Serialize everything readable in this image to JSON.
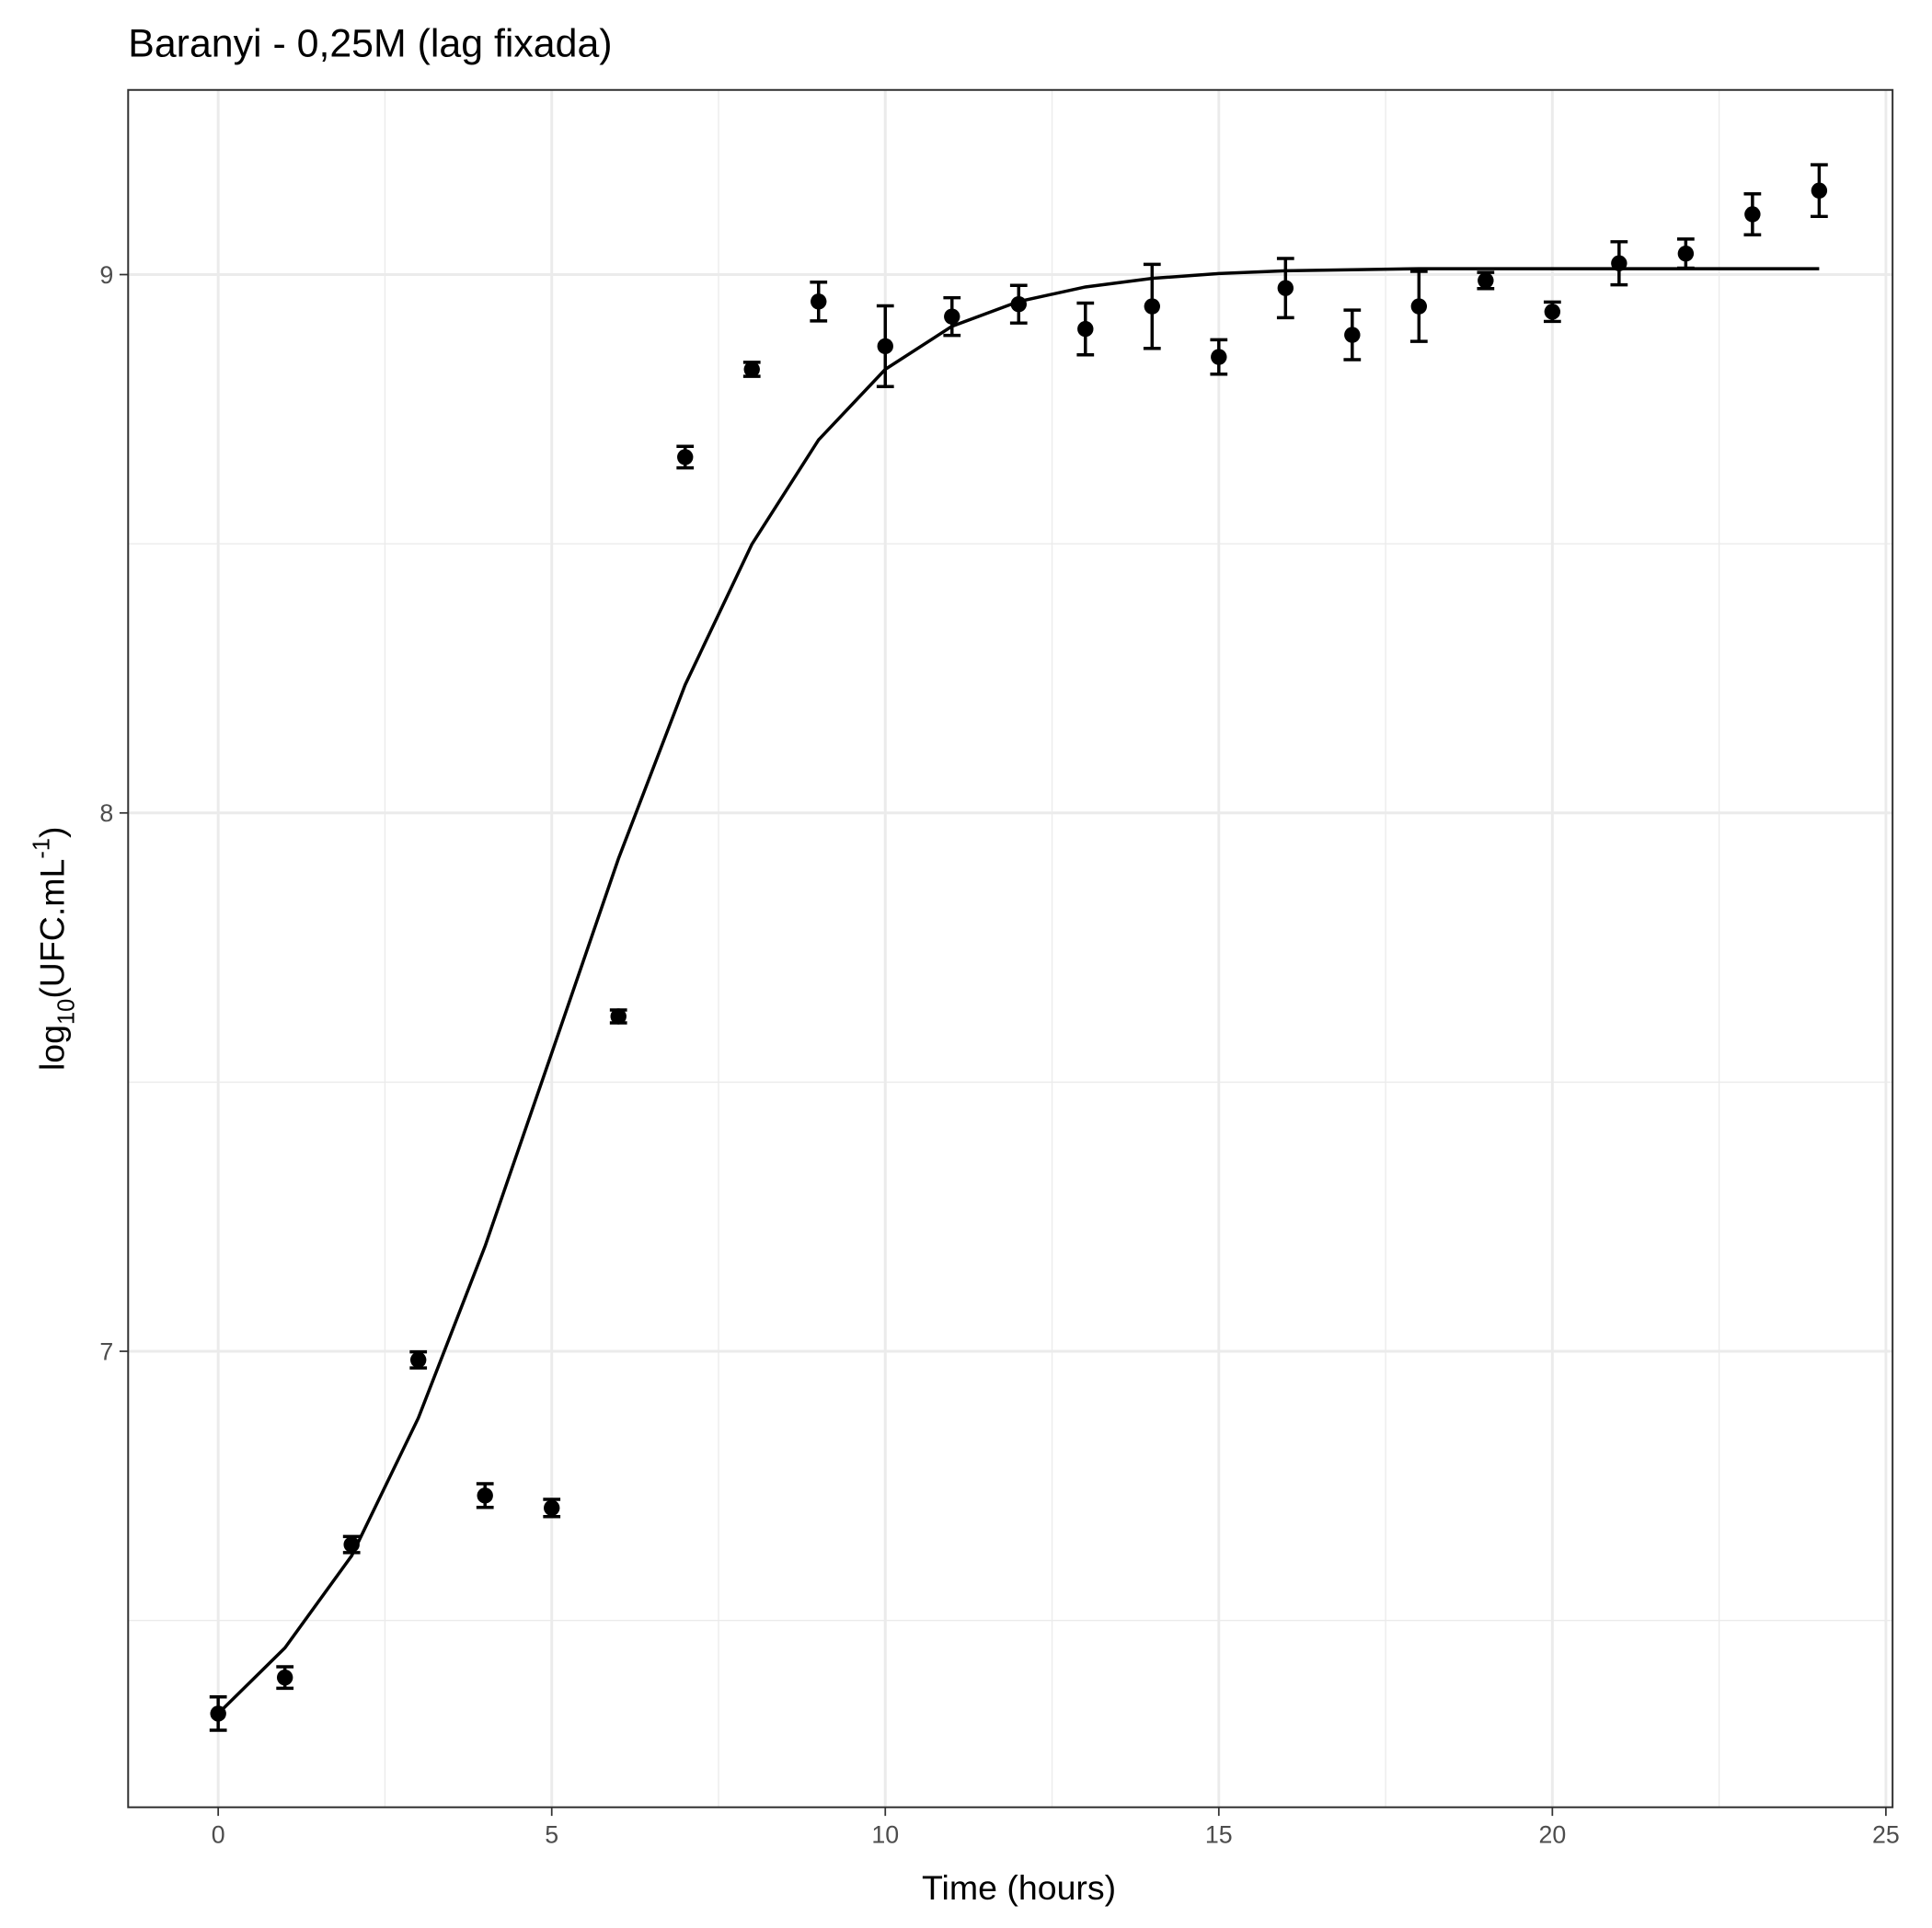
{
  "chart_data": {
    "type": "scatter",
    "title": "Baranyi - 0,25M (lag fixada)",
    "x_label": "Time (hours)",
    "y_label": [
      "log",
      "10",
      "(UFC.mL",
      "-1",
      ")"
    ],
    "xlim": [
      -1.35,
      25.1
    ],
    "ylim": [
      6.153,
      9.343
    ],
    "xticks": [
      0,
      5,
      10,
      15,
      20,
      25
    ],
    "yticks": [
      7,
      8,
      9
    ],
    "x_minor_grid": [
      2.5,
      7.5,
      12.5,
      17.5,
      22.5
    ],
    "y_minor_grid": [
      6.5,
      7.5,
      8.5
    ],
    "grid": true,
    "series": [
      {
        "type": "points",
        "color": "#000000",
        "x": [
          0,
          1,
          2,
          3,
          4,
          5,
          6,
          7,
          8,
          9,
          10,
          11,
          12,
          13,
          14,
          15,
          16,
          17,
          18,
          19,
          20,
          21,
          22,
          23,
          24
        ],
        "values": [
          6.327,
          6.394,
          6.641,
          6.984,
          6.732,
          6.709,
          7.622,
          8.661,
          8.824,
          8.95,
          8.867,
          8.922,
          8.945,
          8.899,
          8.941,
          8.847,
          8.975,
          8.888,
          8.941,
          8.989,
          8.931,
          9.021,
          9.039,
          9.112,
          9.156
        ],
        "errors": [
          0.031,
          0.02,
          0.015,
          0.015,
          0.022,
          0.016,
          0.012,
          0.02,
          0.013,
          0.036,
          0.075,
          0.035,
          0.035,
          0.048,
          0.078,
          0.032,
          0.055,
          0.046,
          0.065,
          0.015,
          0.018,
          0.04,
          0.027,
          0.038,
          0.048
        ]
      },
      {
        "type": "line",
        "color": "#000000",
        "x": [
          0,
          1,
          2,
          3,
          4,
          5,
          6,
          7,
          8,
          9,
          10,
          11,
          12,
          13,
          14,
          15,
          16,
          17,
          18,
          19,
          20,
          21,
          22,
          23,
          24
        ],
        "values": [
          6.327,
          6.449,
          6.62,
          6.876,
          7.195,
          7.554,
          7.915,
          8.238,
          8.499,
          8.693,
          8.824,
          8.904,
          8.95,
          8.977,
          8.993,
          9.002,
          9.007,
          9.009,
          9.011,
          9.011,
          9.011,
          9.011,
          9.011,
          9.011,
          9.011
        ]
      }
    ]
  }
}
